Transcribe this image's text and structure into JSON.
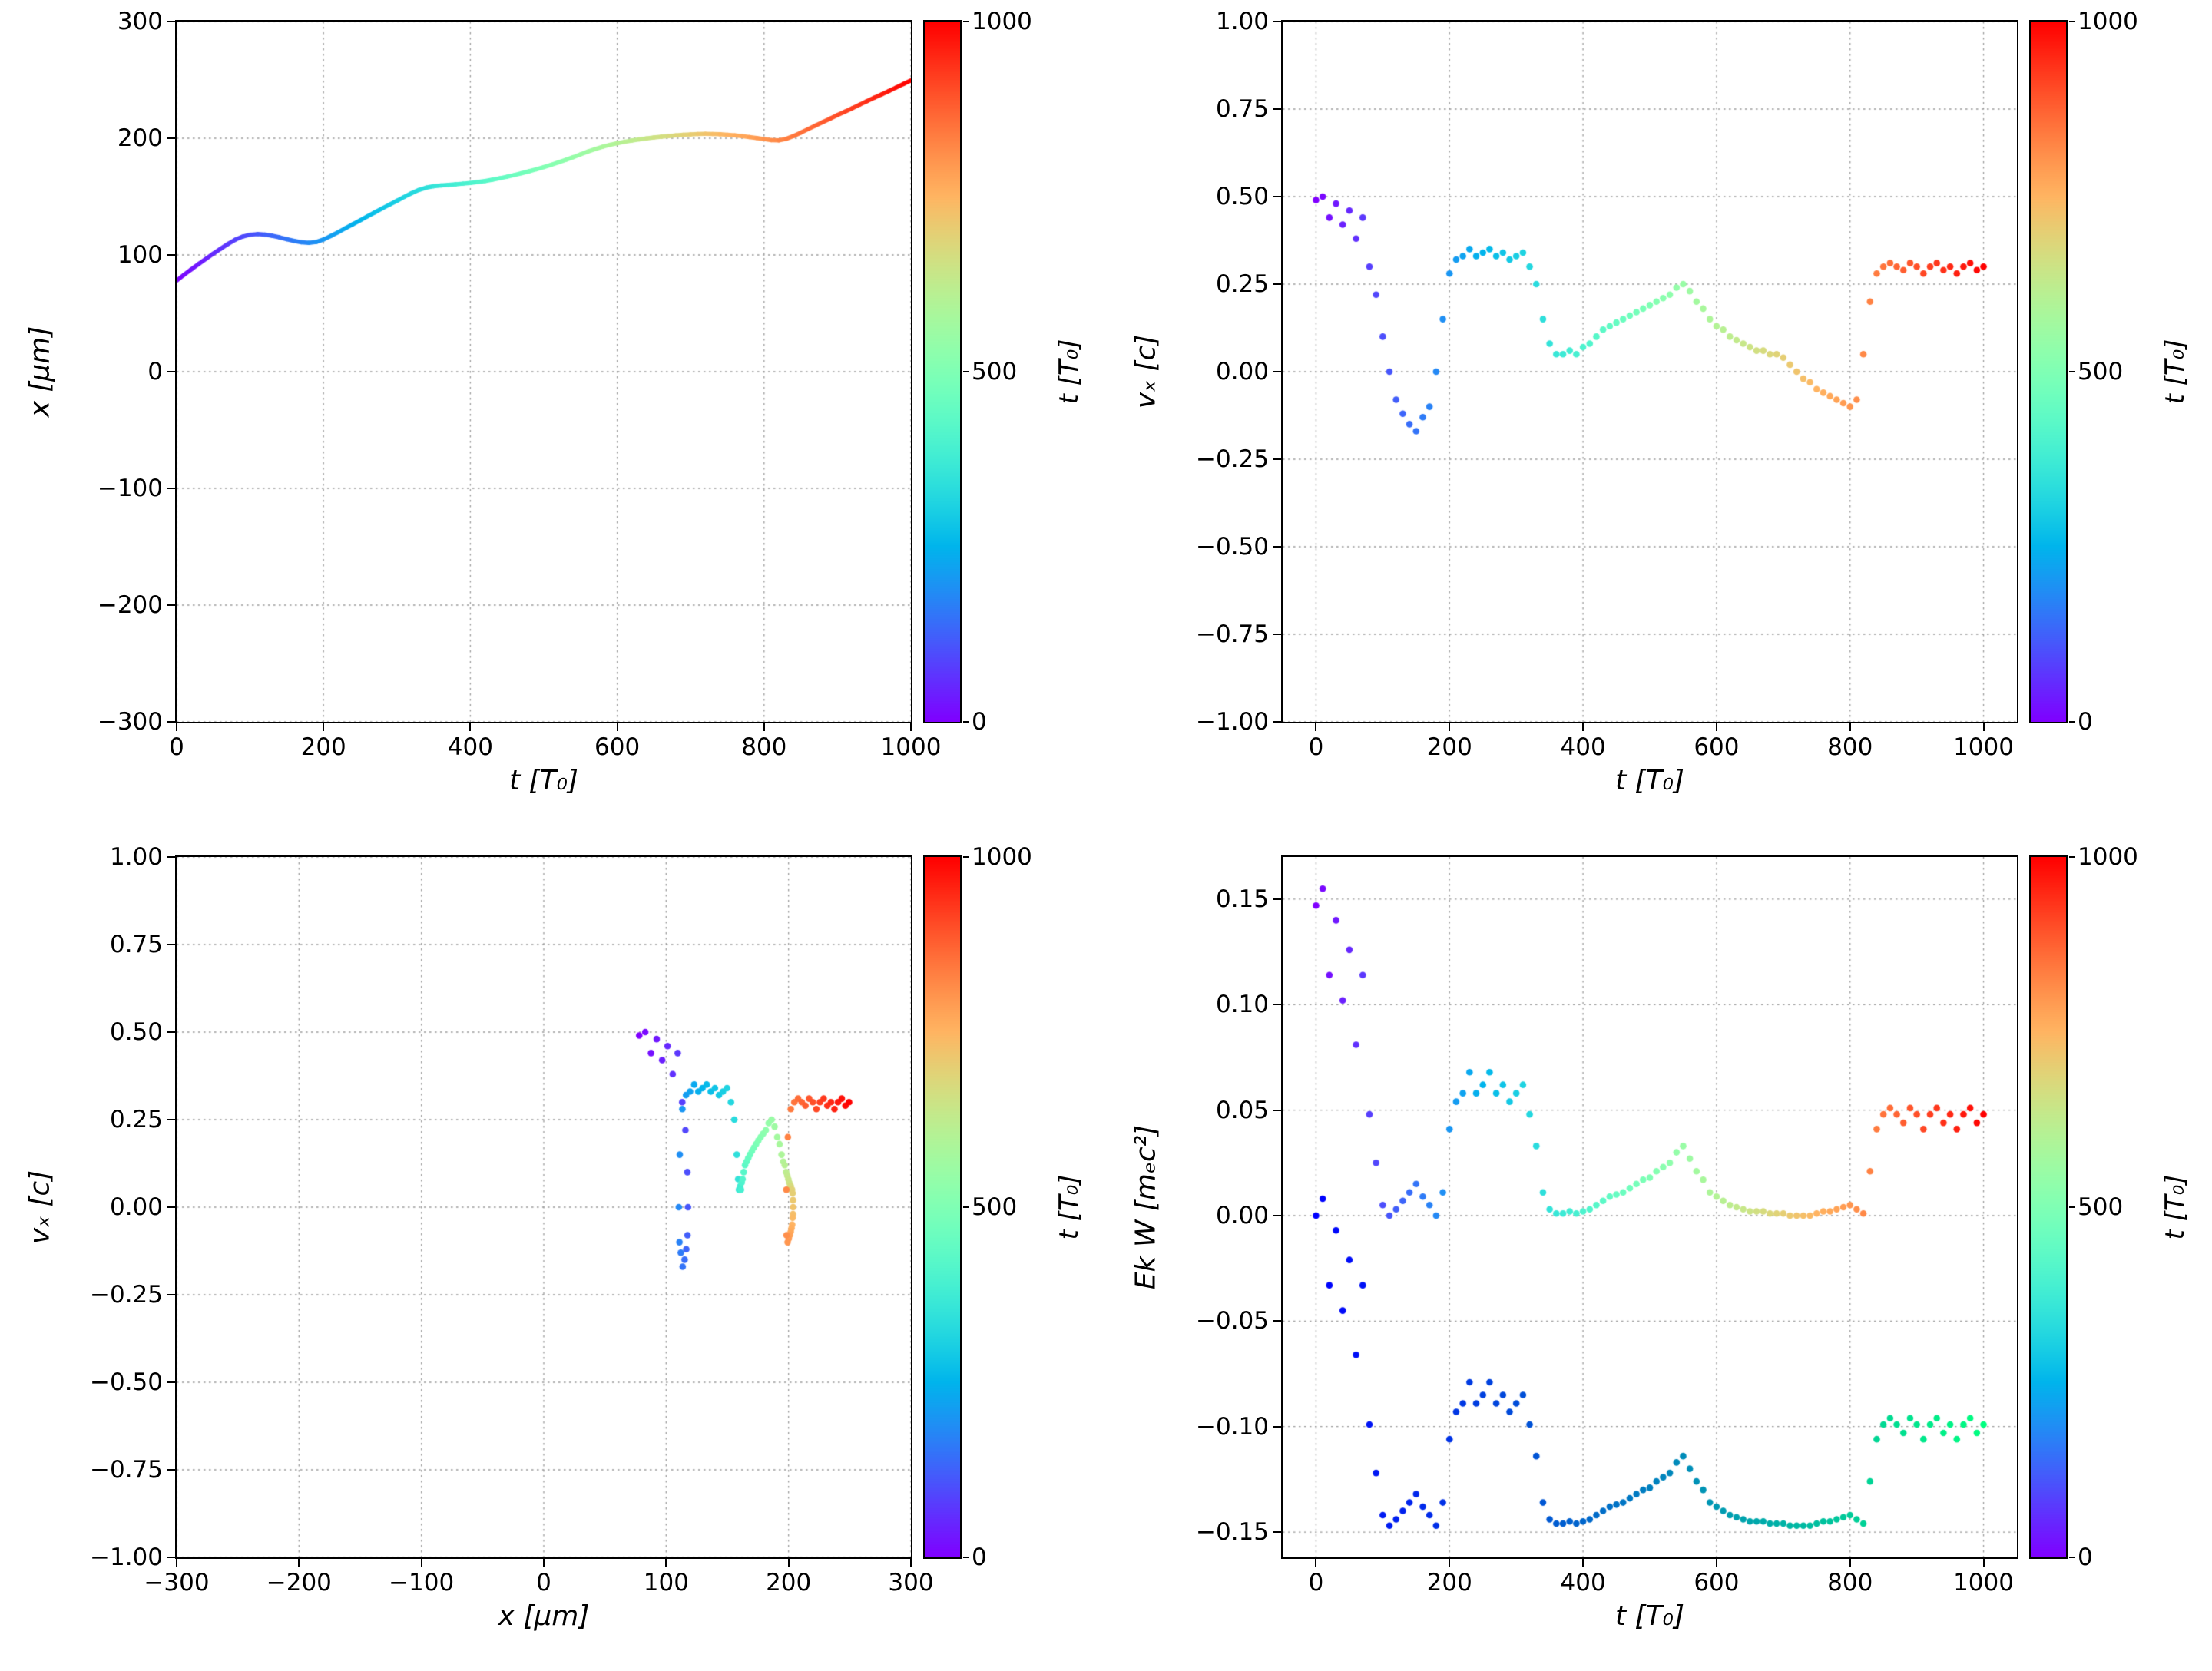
{
  "figure": {
    "background": "#ffffff",
    "colorbar": {
      "label": "t [T₀]",
      "ticks": [
        "0",
        "500",
        "1000"
      ],
      "tick_values": [
        0,
        500,
        1000
      ],
      "min": 0,
      "max": 1000,
      "colormap": "rainbow"
    }
  },
  "series": {
    "t": [
      0,
      10,
      20,
      30,
      40,
      50,
      60,
      70,
      80,
      90,
      100,
      110,
      120,
      130,
      140,
      150,
      160,
      170,
      180,
      190,
      200,
      210,
      220,
      230,
      240,
      250,
      260,
      270,
      280,
      290,
      300,
      310,
      320,
      330,
      340,
      350,
      360,
      370,
      380,
      390,
      400,
      410,
      420,
      430,
      440,
      450,
      460,
      470,
      480,
      490,
      500,
      510,
      520,
      530,
      540,
      550,
      560,
      570,
      580,
      590,
      600,
      610,
      620,
      630,
      640,
      650,
      660,
      670,
      680,
      690,
      700,
      710,
      720,
      730,
      740,
      750,
      760,
      770,
      780,
      790,
      800,
      810,
      820,
      830,
      840,
      850,
      860,
      870,
      880,
      890,
      900,
      910,
      920,
      930,
      940,
      950,
      960,
      970,
      980,
      990,
      1000
    ],
    "x": [
      78.0,
      82.95,
      87.65,
      92.25,
      96.75,
      101.15,
      105.35,
      109.45,
      113.15,
      115.75,
      117.35,
      117.85,
      117.45,
      116.45,
      115.1,
      113.5,
      112.0,
      110.85,
      110.35,
      111.1,
      113.25,
      116.25,
      119.5,
      122.9,
      126.3,
      129.65,
      133.1,
      136.5,
      139.85,
      143.15,
      146.4,
      149.75,
      152.95,
      155.7,
      157.7,
      158.85,
      159.5,
      160.0,
      160.55,
      161.1,
      161.7,
      162.45,
      163.35,
      164.45,
      165.7,
      167.05,
      168.5,
      170.05,
      171.7,
      173.45,
      175.3,
      177.25,
      179.3,
      181.45,
      183.75,
      186.2,
      188.6,
      190.75,
      192.65,
      194.3,
      195.7,
      196.95,
      198.05,
      199.0,
      199.85,
      200.6,
      201.25,
      201.85,
      202.4,
      202.9,
      203.35,
      203.65,
      203.75,
      203.65,
      203.4,
      203.0,
      202.45,
      201.8,
      201.05,
      200.2,
      199.25,
      198.35,
      198.2,
      199.45,
      201.85,
      204.75,
      207.8,
      210.85,
      213.8,
      216.8,
      219.85,
      222.75,
      225.65,
      228.7,
      231.7,
      234.65,
      237.55,
      240.45,
      243.5,
      246.5,
      249.45
    ],
    "vx": [
      0.49,
      0.5,
      0.44,
      0.48,
      0.42,
      0.46,
      0.38,
      0.44,
      0.3,
      0.22,
      0.1,
      0.0,
      -0.08,
      -0.12,
      -0.15,
      -0.17,
      -0.13,
      -0.1,
      0.0,
      0.15,
      0.28,
      0.32,
      0.33,
      0.35,
      0.33,
      0.34,
      0.35,
      0.33,
      0.34,
      0.32,
      0.33,
      0.34,
      0.3,
      0.25,
      0.15,
      0.08,
      0.05,
      0.05,
      0.06,
      0.05,
      0.07,
      0.08,
      0.1,
      0.12,
      0.13,
      0.14,
      0.15,
      0.16,
      0.17,
      0.18,
      0.19,
      0.2,
      0.21,
      0.22,
      0.24,
      0.25,
      0.23,
      0.2,
      0.18,
      0.15,
      0.13,
      0.12,
      0.1,
      0.09,
      0.08,
      0.07,
      0.06,
      0.06,
      0.05,
      0.05,
      0.04,
      0.02,
      0.0,
      -0.02,
      -0.03,
      -0.05,
      -0.06,
      -0.07,
      -0.08,
      -0.09,
      -0.1,
      -0.08,
      0.05,
      0.2,
      0.28,
      0.3,
      0.31,
      0.3,
      0.29,
      0.31,
      0.3,
      0.28,
      0.3,
      0.31,
      0.29,
      0.3,
      0.28,
      0.3,
      0.31,
      0.29,
      0.3
    ],
    "ek": [
      0.147,
      0.155,
      0.114,
      0.14,
      0.102,
      0.126,
      0.081,
      0.114,
      0.048,
      0.025,
      0.005,
      0.0,
      0.003,
      0.007,
      0.011,
      0.015,
      0.009,
      0.005,
      0.0,
      0.011,
      0.041,
      0.054,
      0.058,
      0.068,
      0.058,
      0.062,
      0.068,
      0.058,
      0.062,
      0.054,
      0.058,
      0.062,
      0.048,
      0.033,
      0.011,
      0.003,
      0.001,
      0.001,
      0.002,
      0.001,
      0.002,
      0.003,
      0.005,
      0.007,
      0.009,
      0.01,
      0.011,
      0.013,
      0.015,
      0.017,
      0.018,
      0.021,
      0.023,
      0.025,
      0.03,
      0.033,
      0.027,
      0.021,
      0.017,
      0.011,
      0.009,
      0.007,
      0.005,
      0.004,
      0.003,
      0.002,
      0.002,
      0.002,
      0.001,
      0.001,
      0.001,
      0.0,
      0.0,
      0.0,
      0.0,
      0.001,
      0.002,
      0.002,
      0.003,
      0.004,
      0.005,
      0.003,
      0.001,
      0.021,
      0.041,
      0.048,
      0.051,
      0.048,
      0.044,
      0.051,
      0.048,
      0.041,
      0.048,
      0.051,
      0.044,
      0.048,
      0.041,
      0.048,
      0.051,
      0.044,
      0.048
    ],
    "w": [
      0.0,
      0.008,
      -0.033,
      -0.007,
      -0.045,
      -0.021,
      -0.066,
      -0.033,
      -0.099,
      -0.122,
      -0.142,
      -0.147,
      -0.144,
      -0.14,
      -0.136,
      -0.132,
      -0.138,
      -0.142,
      -0.147,
      -0.136,
      -0.106,
      -0.093,
      -0.089,
      -0.079,
      -0.089,
      -0.085,
      -0.079,
      -0.089,
      -0.085,
      -0.093,
      -0.089,
      -0.085,
      -0.099,
      -0.114,
      -0.136,
      -0.144,
      -0.146,
      -0.146,
      -0.145,
      -0.146,
      -0.145,
      -0.144,
      -0.142,
      -0.14,
      -0.138,
      -0.137,
      -0.136,
      -0.134,
      -0.132,
      -0.13,
      -0.129,
      -0.126,
      -0.124,
      -0.122,
      -0.117,
      -0.114,
      -0.12,
      -0.126,
      -0.13,
      -0.136,
      -0.138,
      -0.14,
      -0.142,
      -0.143,
      -0.144,
      -0.145,
      -0.145,
      -0.145,
      -0.146,
      -0.146,
      -0.146,
      -0.147,
      -0.147,
      -0.147,
      -0.147,
      -0.146,
      -0.145,
      -0.145,
      -0.144,
      -0.143,
      -0.142,
      -0.144,
      -0.146,
      -0.126,
      -0.106,
      -0.099,
      -0.096,
      -0.099,
      -0.103,
      -0.096,
      -0.099,
      -0.106,
      -0.099,
      -0.096,
      -0.103,
      -0.099,
      -0.106,
      -0.099,
      -0.096,
      -0.103,
      -0.099
    ]
  },
  "chart_data": [
    {
      "id": "x-vs-t",
      "type": "line",
      "xlabel": "t  [T₀]",
      "ylabel": "x  [μm]",
      "xlim": [
        0,
        1000
      ],
      "ylim": [
        -300,
        300
      ],
      "grid": true,
      "legend": "none",
      "xticks": {
        "values": [
          0,
          200,
          400,
          600,
          800,
          1000
        ],
        "labels": [
          "0",
          "200",
          "400",
          "600",
          "800",
          "1000"
        ]
      },
      "yticks": {
        "values": [
          -300,
          -200,
          -100,
          0,
          100,
          200,
          300
        ],
        "labels": [
          "−300",
          "−200",
          "−100",
          "0",
          "100",
          "200",
          "300"
        ]
      },
      "series": [
        {
          "name": "x(t)",
          "x": "t",
          "y": "x",
          "color_by": "t",
          "colormap": "rainbow",
          "style": "line"
        }
      ]
    },
    {
      "id": "vx-vs-t",
      "type": "scatter",
      "xlabel": "t [T₀]",
      "ylabel": "vₓ [c]",
      "xlim": [
        -50,
        1050
      ],
      "ylim": [
        -1.0,
        1.0
      ],
      "grid": true,
      "legend": "none",
      "xticks": {
        "values": [
          0,
          200,
          400,
          600,
          800,
          1000
        ],
        "labels": [
          "0",
          "200",
          "400",
          "600",
          "800",
          "1000"
        ]
      },
      "yticks": {
        "values": [
          -1.0,
          -0.75,
          -0.5,
          -0.25,
          0.0,
          0.25,
          0.5,
          0.75,
          1.0
        ],
        "labels": [
          "−1.00",
          "−0.75",
          "−0.50",
          "−0.25",
          "0.00",
          "0.25",
          "0.50",
          "0.75",
          "1.00"
        ]
      },
      "series": [
        {
          "name": "vx(t)",
          "x": "t",
          "y": "vx",
          "color_by": "t",
          "colormap": "rainbow",
          "style": "scatter"
        }
      ]
    },
    {
      "id": "vx-vs-x",
      "type": "scatter",
      "xlabel": "x [μm]",
      "ylabel": "vₓ [c]",
      "xlim": [
        -300,
        300
      ],
      "ylim": [
        -1.0,
        1.0
      ],
      "grid": true,
      "legend": "none",
      "xticks": {
        "values": [
          -300,
          -200,
          -100,
          0,
          100,
          200,
          300
        ],
        "labels": [
          "−300",
          "−200",
          "−100",
          "0",
          "100",
          "200",
          "300"
        ]
      },
      "yticks": {
        "values": [
          -1.0,
          -0.75,
          -0.5,
          -0.25,
          0.0,
          0.25,
          0.5,
          0.75,
          1.0
        ],
        "labels": [
          "−1.00",
          "−0.75",
          "−0.50",
          "−0.25",
          "0.00",
          "0.25",
          "0.50",
          "0.75",
          "1.00"
        ]
      },
      "series": [
        {
          "name": "vx(x)",
          "x": "x",
          "y": "vx",
          "color_by": "t",
          "colormap": "rainbow",
          "style": "scatter"
        }
      ]
    },
    {
      "id": "ek-w-vs-t",
      "type": "scatter",
      "xlabel": "t [T₀]",
      "ylabel": "Ek W [mₑc²]",
      "xlim": [
        -50,
        1050
      ],
      "ylim": [
        -0.162,
        0.17
      ],
      "grid": true,
      "legend": "none",
      "xticks": {
        "values": [
          0,
          200,
          400,
          600,
          800,
          1000
        ],
        "labels": [
          "0",
          "200",
          "400",
          "600",
          "800",
          "1000"
        ]
      },
      "yticks": {
        "values": [
          -0.15,
          -0.1,
          -0.05,
          0.0,
          0.05,
          0.1,
          0.15
        ],
        "labels": [
          "−0.15",
          "−0.10",
          "−0.05",
          "0.00",
          "0.05",
          "0.10",
          "0.15"
        ]
      },
      "series": [
        {
          "name": "Ek(t)",
          "x": "t",
          "y": "ek",
          "color_by": "t",
          "colormap": "rainbow",
          "style": "scatter"
        },
        {
          "name": "W(t)",
          "x": "t",
          "y": "w",
          "color_by": "t",
          "colormap": "winter",
          "style": "scatter"
        }
      ]
    }
  ]
}
